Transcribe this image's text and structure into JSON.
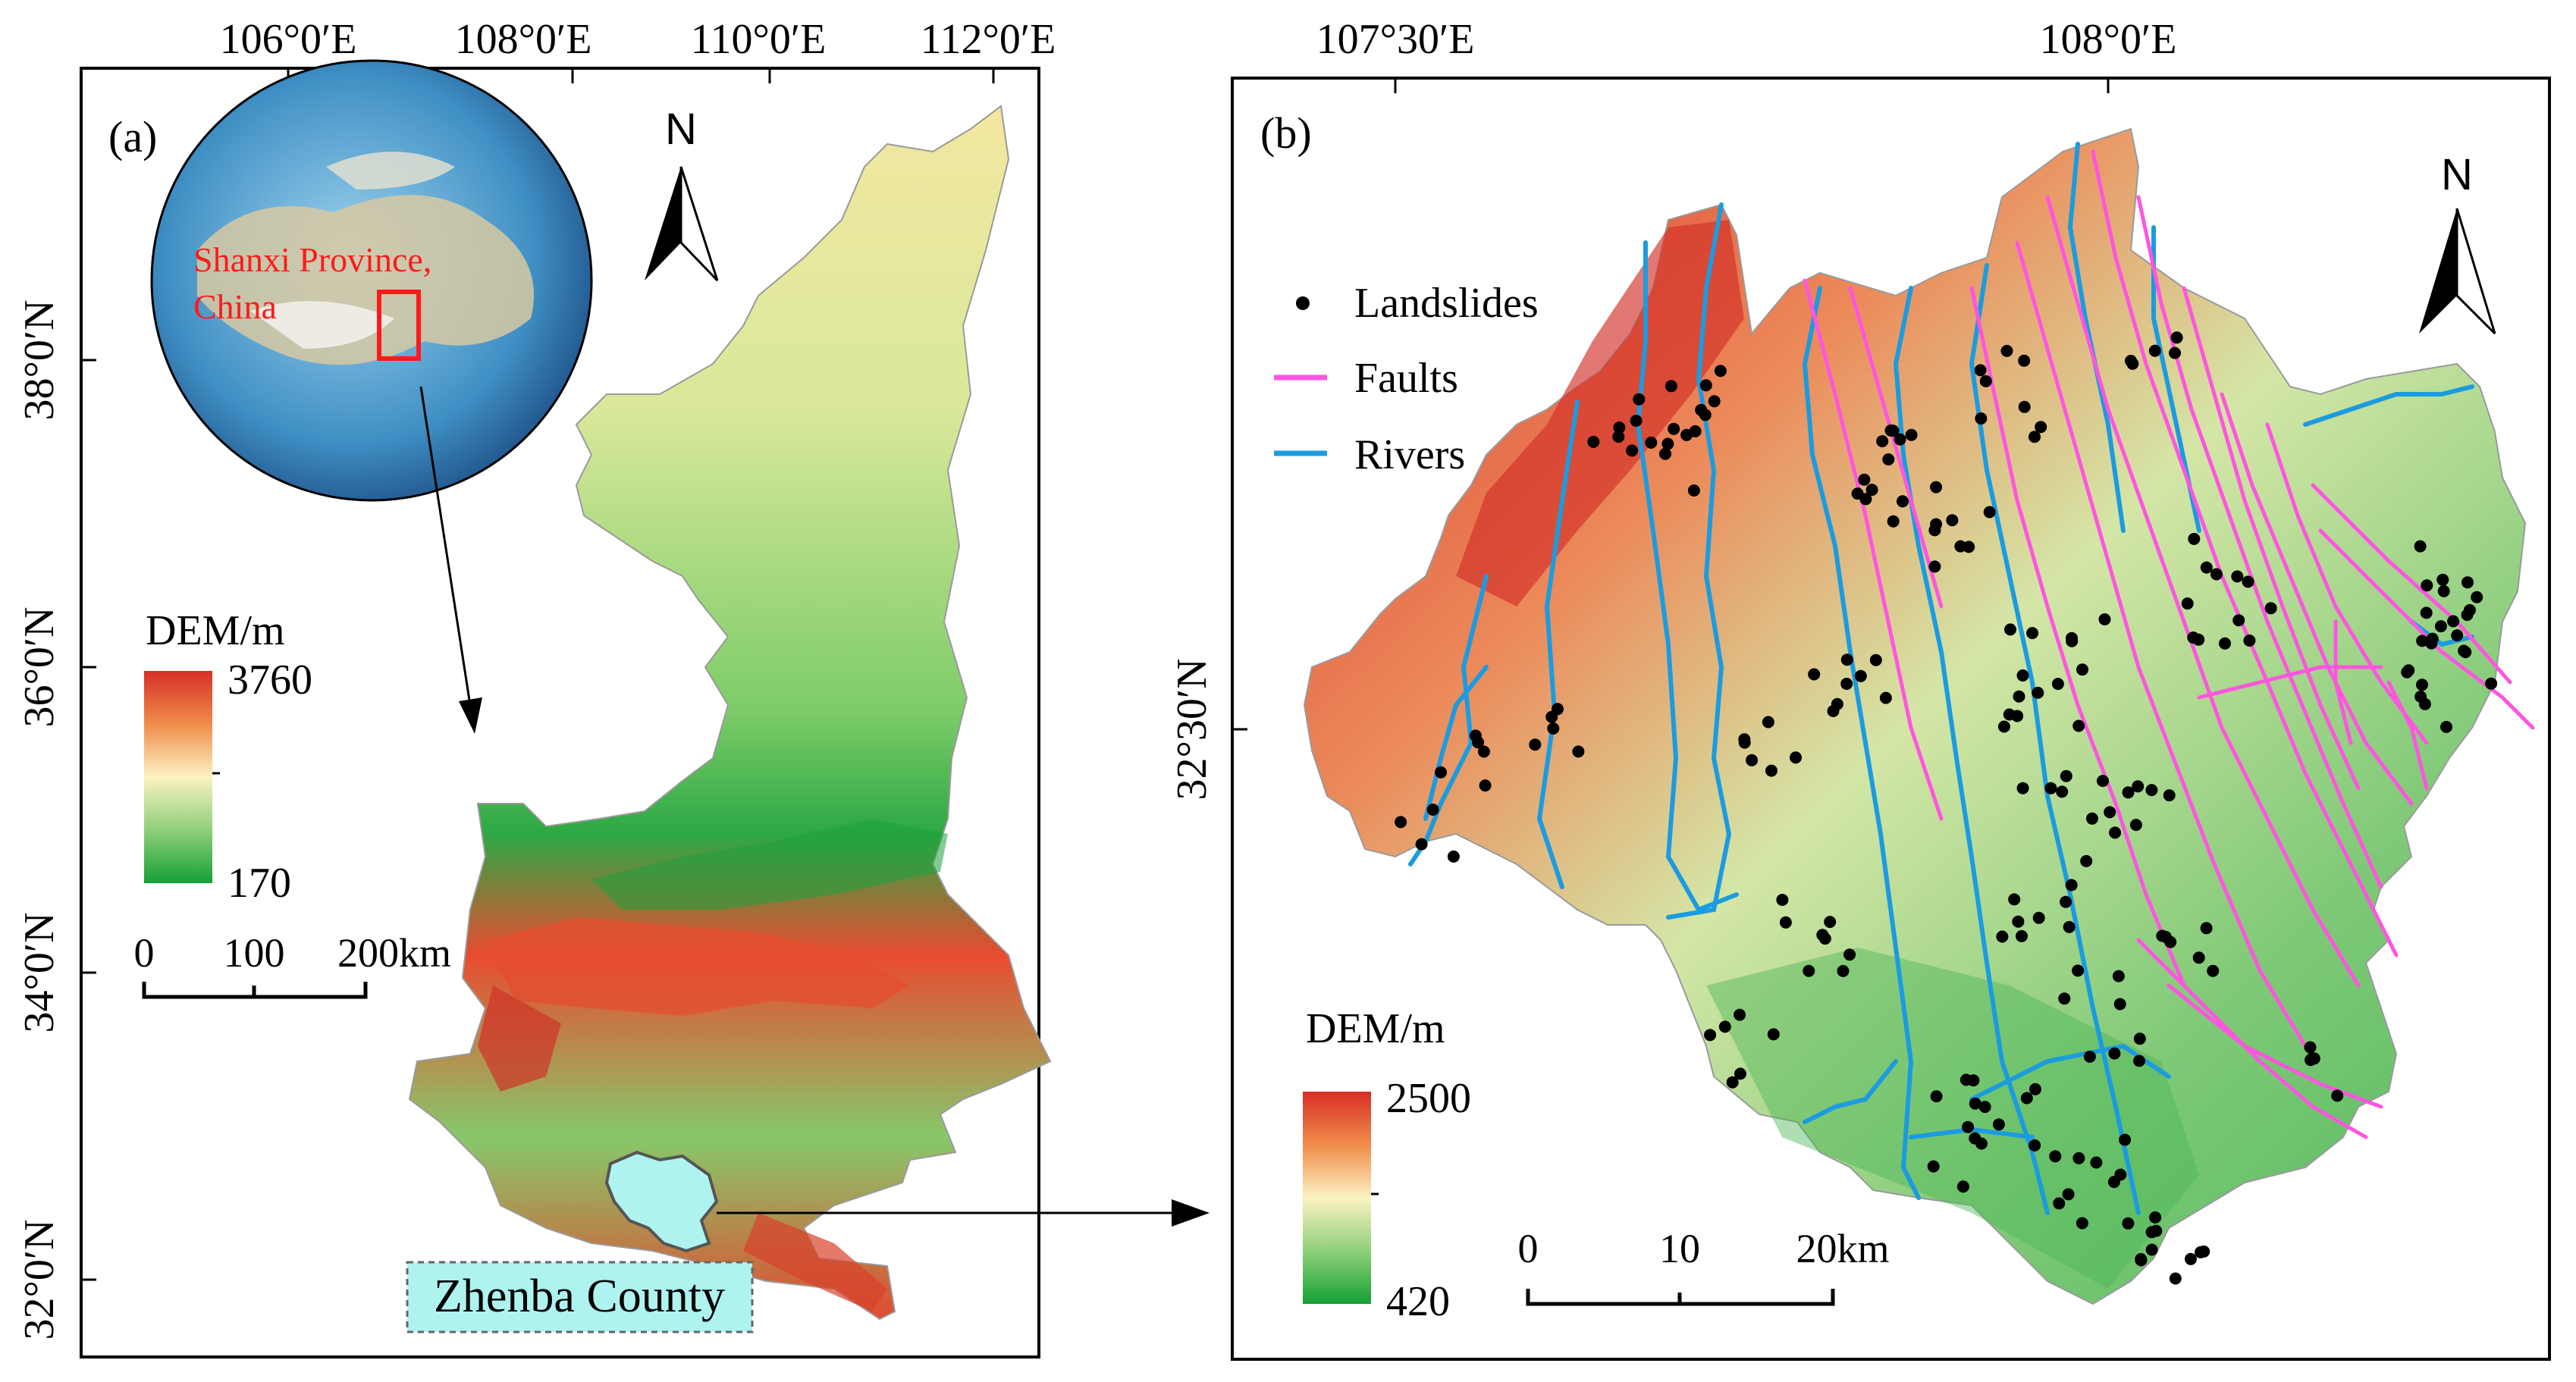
{
  "panel_a": {
    "label": "(a)",
    "top_ticks": [
      "106°0′E",
      "108°0′E",
      "110°0′E",
      "112°0′E"
    ],
    "left_ticks": [
      "38°0′N",
      "36°0′N",
      "34°0′N",
      "32°0′N"
    ],
    "north": "N",
    "globe_label_line1": "Shanxi  Province,",
    "globe_label_line2": "China",
    "dem_title": "DEM/m",
    "dem_max": "3760",
    "dem_min": "170",
    "scale_ticks": [
      "0",
      "100",
      "200km"
    ],
    "county_label": "Zhenba County",
    "colors": {
      "county_fill": "#aef3f0",
      "highlight": "#ff1a1a"
    }
  },
  "panel_b": {
    "label": "(b)",
    "top_ticks": [
      "107°30′E",
      "108°0′E"
    ],
    "left_ticks": [
      "32°30′N"
    ],
    "north": "N",
    "legend": {
      "landslides": "Landslides",
      "faults": "Faults",
      "rivers": "Rivers"
    },
    "dem_title": "DEM/m",
    "dem_max": "2500",
    "dem_min": "420",
    "scale_ticks": [
      "0",
      "10",
      "20km"
    ],
    "colors": {
      "fault": "#ff55e0",
      "river": "#1b9be0",
      "landslide": "#000000"
    }
  }
}
